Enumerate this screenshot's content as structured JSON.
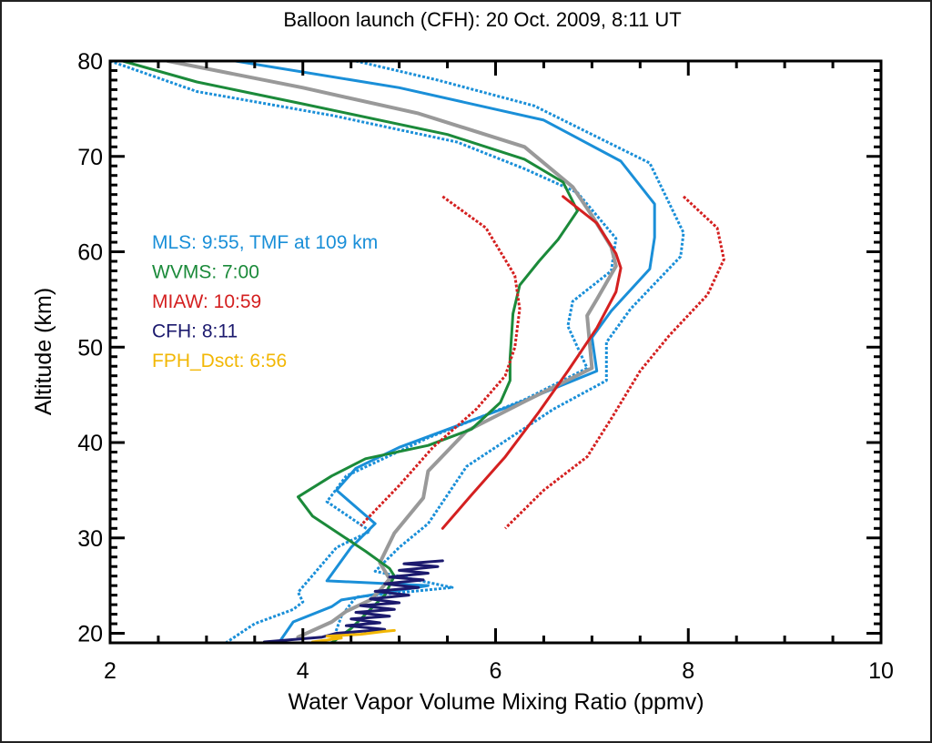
{
  "chart_data": {
    "type": "line",
    "title": "Balloon launch (CFH): 20 Oct. 2009, 8:11 UT",
    "xlabel": "Water Vapor Volume Mixing Ratio (ppmv)",
    "ylabel": "Altitude (km)",
    "xlim": [
      2,
      10
    ],
    "ylim": [
      19,
      80
    ],
    "xticks": [
      2,
      4,
      6,
      8,
      10
    ],
    "xtick_labels": [
      "2",
      "4",
      "6",
      "8",
      "10"
    ],
    "yticks": [
      20,
      30,
      40,
      50,
      60,
      70,
      80
    ],
    "ytick_labels": [
      "20",
      "30",
      "40",
      "50",
      "60",
      "70",
      "80"
    ],
    "x_minor_step": 0.5,
    "y_minor_step": 1,
    "grid": false,
    "legend_position": "upper-left (inside plot)",
    "legend": [
      {
        "label": "MLS: 9:55, TMF at 109 km",
        "color": "#1a8fd8"
      },
      {
        "label": "WVMS: 7:00",
        "color": "#1b8a3a"
      },
      {
        "label": "MIAW: 10:59",
        "color": "#d42020"
      },
      {
        "label": "CFH: 8:11",
        "color": "#1c1a6e"
      },
      {
        "label": "FPH_Dsct: 6:56",
        "color": "#f2b705"
      }
    ],
    "series": [
      {
        "name": "MLS error high",
        "color": "#1a8fd8",
        "style": "dotted",
        "points": [
          [
            4.55,
            80
          ],
          [
            5.4,
            78
          ],
          [
            6.4,
            75.3
          ],
          [
            7.6,
            69.3
          ],
          [
            7.95,
            62
          ],
          [
            7.92,
            59.5
          ],
          [
            7.4,
            54
          ],
          [
            7.15,
            50.5
          ],
          [
            7.15,
            46.5
          ],
          [
            6.6,
            43.5
          ],
          [
            5.7,
            37.5
          ],
          [
            5.3,
            31.5
          ],
          [
            5.0,
            29
          ],
          [
            4.75,
            26.5
          ],
          [
            5.55,
            24.8
          ],
          [
            4.55,
            23.8
          ],
          [
            4.4,
            21.8
          ],
          [
            4.3,
            19
          ]
        ]
      },
      {
        "name": "MLS",
        "color": "#1a8fd8",
        "style": "solid",
        "points": [
          [
            3.3,
            80
          ],
          [
            5.0,
            77.2
          ],
          [
            6.5,
            73.8
          ],
          [
            7.3,
            69.5
          ],
          [
            7.65,
            65
          ],
          [
            7.65,
            61.5
          ],
          [
            7.6,
            58.2
          ],
          [
            7.2,
            53.8
          ],
          [
            7.0,
            51
          ],
          [
            7.05,
            47.5
          ],
          [
            6.2,
            44
          ],
          [
            5.0,
            39.5
          ],
          [
            4.55,
            37.3
          ],
          [
            4.35,
            35
          ],
          [
            4.75,
            31.5
          ],
          [
            4.5,
            29
          ],
          [
            4.25,
            25.5
          ],
          [
            5.3,
            25
          ],
          [
            4.4,
            23.5
          ],
          [
            4.3,
            22.8
          ],
          [
            3.9,
            21.2
          ],
          [
            3.75,
            19
          ]
        ]
      },
      {
        "name": "MLS error low",
        "color": "#1a8fd8",
        "style": "dotted",
        "points": [
          [
            2.0,
            80
          ],
          [
            2.9,
            76.8
          ],
          [
            4.3,
            74.3
          ],
          [
            5.6,
            71.5
          ],
          [
            6.3,
            68.7
          ],
          [
            6.85,
            66.2
          ],
          [
            7.25,
            61.4
          ],
          [
            7.2,
            58
          ],
          [
            6.8,
            54.8
          ],
          [
            6.75,
            52.2
          ],
          [
            6.95,
            47.8
          ],
          [
            6.3,
            44.5
          ],
          [
            5.3,
            40.5
          ],
          [
            4.45,
            36.5
          ],
          [
            4.25,
            33.8
          ],
          [
            4.7,
            30.7
          ],
          [
            4.35,
            29
          ],
          [
            3.95,
            24.3
          ],
          [
            4.0,
            23.3
          ],
          [
            3.9,
            22.5
          ],
          [
            3.5,
            21
          ],
          [
            3.2,
            19
          ]
        ]
      },
      {
        "name": "Reference (gray)",
        "color": "#999999",
        "style": "solid",
        "points": [
          [
            2.6,
            80
          ],
          [
            4.0,
            77.2
          ],
          [
            5.2,
            74.5
          ],
          [
            6.3,
            71
          ],
          [
            6.8,
            66.8
          ],
          [
            7.0,
            63.8
          ],
          [
            7.2,
            60.5
          ],
          [
            7.25,
            58.5
          ],
          [
            7.05,
            55
          ],
          [
            6.95,
            53.3
          ],
          [
            7.0,
            47.8
          ],
          [
            6.3,
            44.3
          ],
          [
            5.7,
            41.2
          ],
          [
            5.3,
            37
          ],
          [
            5.25,
            34.2
          ],
          [
            4.95,
            30.5
          ],
          [
            4.8,
            27.4
          ],
          [
            4.9,
            25.7
          ],
          [
            4.8,
            24.5
          ],
          [
            4.7,
            23.5
          ],
          [
            4.45,
            22.3
          ],
          [
            4.3,
            21.2
          ],
          [
            3.95,
            19.6
          ]
        ]
      },
      {
        "name": "WVMS",
        "color": "#1b8a3a",
        "style": "solid",
        "points": [
          [
            2.13,
            80
          ],
          [
            2.9,
            77.8
          ],
          [
            4.0,
            75.5
          ],
          [
            5.5,
            72.3
          ],
          [
            6.3,
            69.7
          ],
          [
            6.7,
            67.3
          ],
          [
            6.85,
            64.3
          ],
          [
            6.65,
            61.3
          ],
          [
            6.45,
            59
          ],
          [
            6.25,
            56.5
          ],
          [
            6.18,
            53.5
          ],
          [
            6.15,
            48.8
          ],
          [
            6.15,
            46.5
          ],
          [
            6.05,
            44.2
          ],
          [
            5.75,
            41.4
          ],
          [
            5.3,
            39.7
          ],
          [
            4.65,
            38.3
          ],
          [
            4.3,
            36.5
          ],
          [
            3.95,
            34.3
          ],
          [
            4.1,
            32.3
          ],
          [
            4.65,
            28.6
          ],
          [
            4.9,
            26.8
          ],
          [
            4.95,
            26
          ],
          [
            4.85,
            24
          ],
          [
            4.7,
            22.5
          ],
          [
            4.5,
            20.5
          ],
          [
            4.3,
            19
          ]
        ]
      },
      {
        "name": "MIAW error low",
        "color": "#d42020",
        "style": "dotted",
        "points": [
          [
            5.45,
            65.8
          ],
          [
            5.9,
            62.5
          ],
          [
            6.2,
            57.5
          ],
          [
            6.25,
            54
          ],
          [
            6.2,
            50
          ],
          [
            6.1,
            47
          ],
          [
            5.8,
            43.5
          ],
          [
            5.35,
            39.5
          ],
          [
            5.0,
            35.5
          ],
          [
            4.6,
            31.3
          ]
        ]
      },
      {
        "name": "MIAW",
        "color": "#d42020",
        "style": "solid",
        "points": [
          [
            6.7,
            65.8
          ],
          [
            7.05,
            63
          ],
          [
            7.25,
            59.8
          ],
          [
            7.3,
            58.3
          ],
          [
            7.25,
            55.8
          ],
          [
            7.05,
            52
          ],
          [
            6.75,
            47.5
          ],
          [
            6.45,
            43.2
          ],
          [
            6.1,
            38.5
          ],
          [
            5.75,
            34.5
          ],
          [
            5.45,
            31
          ]
        ]
      },
      {
        "name": "MIAW error high",
        "color": "#d42020",
        "style": "dotted",
        "points": [
          [
            7.95,
            65.8
          ],
          [
            8.3,
            62.5
          ],
          [
            8.37,
            59.2
          ],
          [
            8.2,
            55.5
          ],
          [
            7.8,
            51.2
          ],
          [
            7.5,
            47.5
          ],
          [
            7.2,
            42.5
          ],
          [
            6.95,
            38.5
          ],
          [
            6.5,
            35
          ],
          [
            6.1,
            31
          ]
        ]
      },
      {
        "name": "CFH",
        "color": "#1c1a6e",
        "style": "solid",
        "points": [
          [
            3.6,
            19.1
          ],
          [
            4.2,
            19.6
          ],
          [
            4.35,
            20.0
          ],
          [
            4.85,
            20.4
          ],
          [
            4.45,
            20.8
          ],
          [
            4.8,
            21.1
          ],
          [
            4.5,
            21.5
          ],
          [
            4.9,
            21.8
          ],
          [
            4.55,
            22.2
          ],
          [
            4.95,
            22.5
          ],
          [
            4.6,
            22.9
          ],
          [
            5.0,
            23.2
          ],
          [
            4.7,
            23.6
          ],
          [
            5.1,
            24.0
          ],
          [
            4.75,
            24.4
          ],
          [
            5.2,
            24.8
          ],
          [
            4.85,
            25.2
          ],
          [
            5.25,
            25.6
          ],
          [
            4.9,
            25.9
          ],
          [
            5.3,
            26.3
          ],
          [
            5.0,
            26.6
          ],
          [
            5.4,
            27.0
          ],
          [
            5.05,
            27.3
          ],
          [
            5.45,
            27.6
          ]
        ]
      },
      {
        "name": "FPH_Dsct",
        "color": "#f2b705",
        "style": "solid",
        "points": [
          [
            4.1,
            19.1
          ],
          [
            4.4,
            19.5
          ],
          [
            4.25,
            19.7
          ],
          [
            4.6,
            19.9
          ],
          [
            4.85,
            20.2
          ],
          [
            4.95,
            20.3
          ]
        ]
      }
    ]
  }
}
